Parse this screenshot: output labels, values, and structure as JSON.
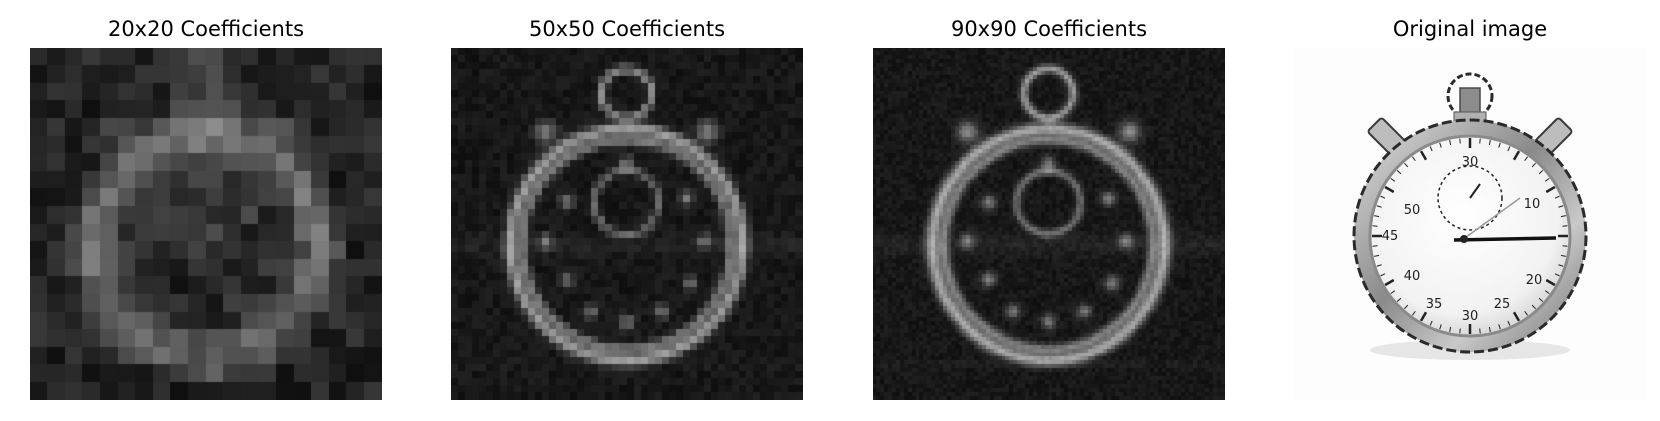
{
  "panels": [
    {
      "title": "20x20 Coefficients"
    },
    {
      "title": "50x50 Coefficients"
    },
    {
      "title": "90x90 Coefficients"
    },
    {
      "title": "Original image"
    }
  ]
}
